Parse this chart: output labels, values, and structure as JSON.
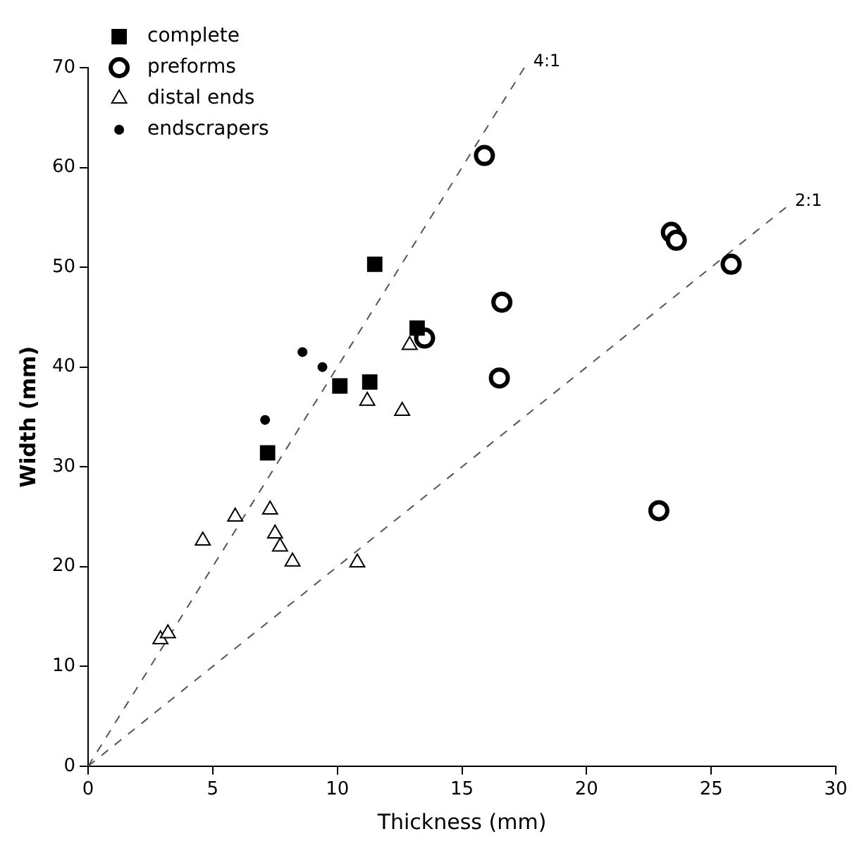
{
  "chart_data": {
    "type": "scatter",
    "xlabel": "Thickness (mm)",
    "ylabel": "Width (mm)",
    "xlim": [
      0,
      30
    ],
    "ylim": [
      0,
      70
    ],
    "xticks": [
      0,
      5,
      10,
      15,
      20,
      25,
      30
    ],
    "yticks": [
      0,
      10,
      20,
      30,
      40,
      50,
      60,
      70
    ],
    "grid": false,
    "legend": "top left",
    "series": [
      {
        "name": "complete",
        "color": "#000000",
        "marker": "square",
        "x": [
          11.5,
          13.2,
          10.1,
          11.3,
          7.2
        ],
        "values": [
          50.3,
          43.9,
          38.1,
          38.5,
          31.4
        ]
      },
      {
        "name": "preforms",
        "color": "#000000",
        "marker": "circle",
        "x": [
          15.9,
          23.4,
          23.6,
          25.8,
          16.6,
          16.5,
          22.9,
          13.5
        ],
        "values": [
          61.2,
          53.5,
          52.7,
          50.3,
          46.5,
          38.9,
          25.6,
          42.9
        ]
      },
      {
        "name": "distal ends",
        "color": "#000000",
        "marker": "triangle",
        "x": [
          12.9,
          11.2,
          12.6,
          7.3,
          5.9,
          4.6,
          7.5,
          7.7,
          8.2,
          10.8,
          2.9,
          3.2
        ],
        "values": [
          42.2,
          36.6,
          35.6,
          25.7,
          25.0,
          22.6,
          23.3,
          22.0,
          20.5,
          20.4,
          12.7,
          13.3
        ]
      },
      {
        "name": "endscrapers",
        "color": "#000000",
        "marker": "circle",
        "x": [
          8.6,
          9.4,
          7.1
        ],
        "values": [
          41.5,
          40.0,
          34.7
        ]
      },
      {
        "type": "line",
        "color": "#555555",
        "line_style": "dashed",
        "marker": "none",
        "x": [
          0,
          17.5
        ],
        "values": [
          0,
          70
        ]
      },
      {
        "type": "line",
        "color": "#555555",
        "line_style": "dashed",
        "marker": "none",
        "x": [
          0,
          28
        ],
        "values": [
          0,
          56
        ]
      }
    ],
    "annotations": [
      {
        "text": "4:1",
        "x": 17.5,
        "y": 70
      },
      {
        "text": "2:1",
        "x": 28,
        "y": 56
      }
    ]
  }
}
